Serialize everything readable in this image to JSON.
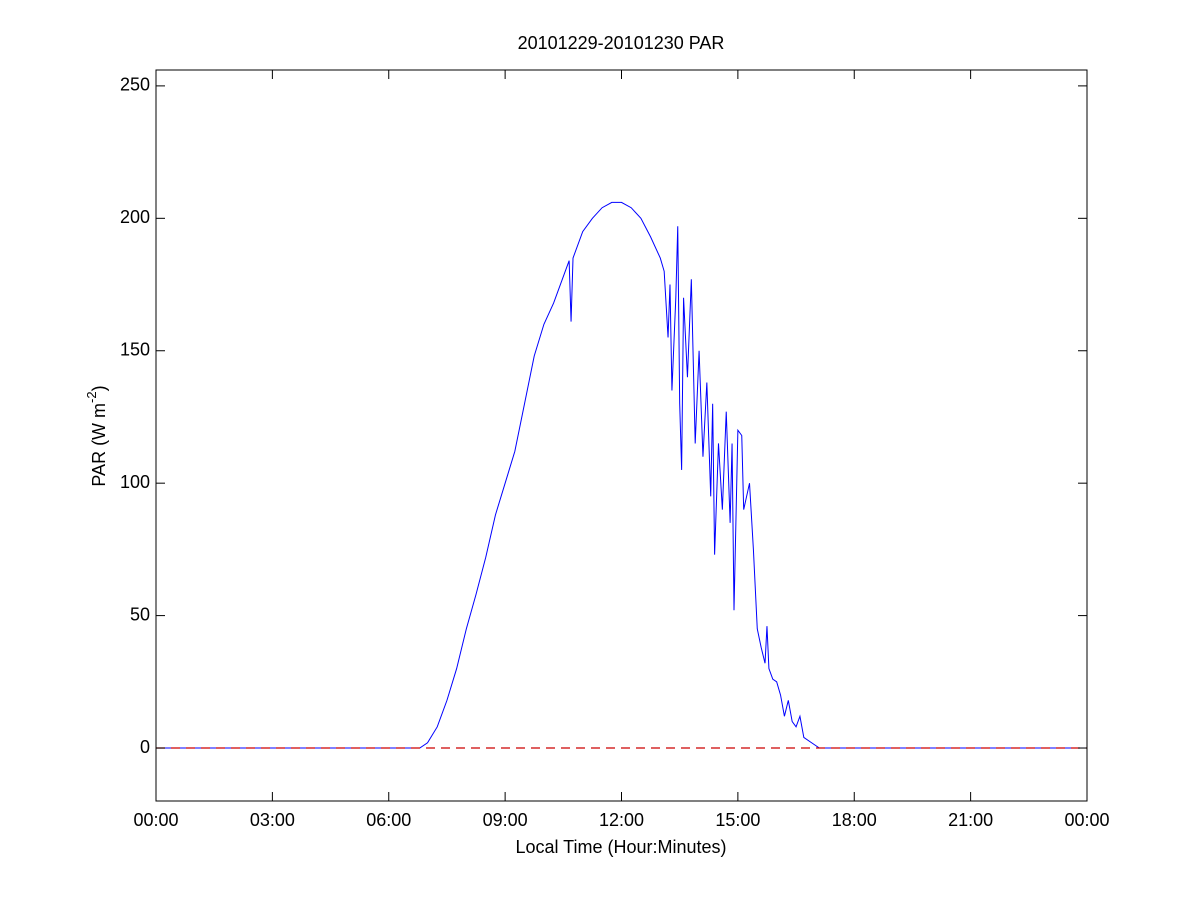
{
  "chart_data": {
    "type": "line",
    "title": "20101229-20101230 PAR",
    "xlabel": "Local Time (Hour:Minutes)",
    "ylabel_parts": [
      "PAR (W m",
      "-2",
      ")"
    ],
    "x": [
      0,
      6.8,
      7.0,
      7.25,
      7.5,
      7.75,
      8.0,
      8.25,
      8.5,
      8.75,
      9.0,
      9.25,
      9.5,
      9.75,
      10.0,
      10.25,
      10.5,
      10.65,
      10.7,
      10.75,
      11.0,
      11.25,
      11.5,
      11.75,
      12.0,
      12.25,
      12.5,
      12.75,
      13.0,
      13.1,
      13.2,
      13.25,
      13.3,
      13.4,
      13.45,
      13.5,
      13.55,
      13.6,
      13.7,
      13.8,
      13.9,
      14.0,
      14.1,
      14.2,
      14.3,
      14.35,
      14.4,
      14.5,
      14.6,
      14.7,
      14.8,
      14.85,
      14.9,
      15.0,
      15.1,
      15.15,
      15.3,
      15.4,
      15.5,
      15.6,
      15.7,
      15.75,
      15.8,
      15.9,
      16.0,
      16.1,
      16.2,
      16.3,
      16.4,
      16.5,
      16.6,
      16.7,
      16.9,
      17.1,
      24
    ],
    "series": [
      {
        "name": "PAR",
        "color": "#0000ff",
        "values": [
          0,
          0,
          2,
          8,
          18,
          30,
          45,
          58,
          72,
          88,
          100,
          112,
          130,
          148,
          160,
          168,
          178,
          184,
          161,
          185,
          195,
          200,
          204,
          206,
          206,
          204,
          200,
          193,
          185,
          180,
          155,
          175,
          135,
          170,
          197,
          130,
          105,
          170,
          140,
          177,
          115,
          150,
          110,
          138,
          95,
          130,
          73,
          115,
          90,
          127,
          85,
          115,
          52,
          120,
          118,
          90,
          100,
          75,
          45,
          38,
          32,
          46,
          30,
          26,
          25,
          20,
          12,
          18,
          10,
          8,
          12,
          4,
          2,
          0,
          0
        ]
      }
    ],
    "reference_line": {
      "y": 0,
      "color": "#cc0000",
      "dashed": true
    },
    "xlim": [
      0,
      24
    ],
    "xticks": [
      {
        "value": 0,
        "label": "00:00"
      },
      {
        "value": 3,
        "label": "03:00"
      },
      {
        "value": 6,
        "label": "06:00"
      },
      {
        "value": 9,
        "label": "09:00"
      },
      {
        "value": 12,
        "label": "12:00"
      },
      {
        "value": 15,
        "label": "15:00"
      },
      {
        "value": 18,
        "label": "18:00"
      },
      {
        "value": 21,
        "label": "21:00"
      },
      {
        "value": 24,
        "label": "00:00"
      }
    ],
    "ylim": [
      -20,
      256
    ],
    "yticks": [
      0,
      50,
      100,
      150,
      200,
      250
    ],
    "grid": false
  }
}
